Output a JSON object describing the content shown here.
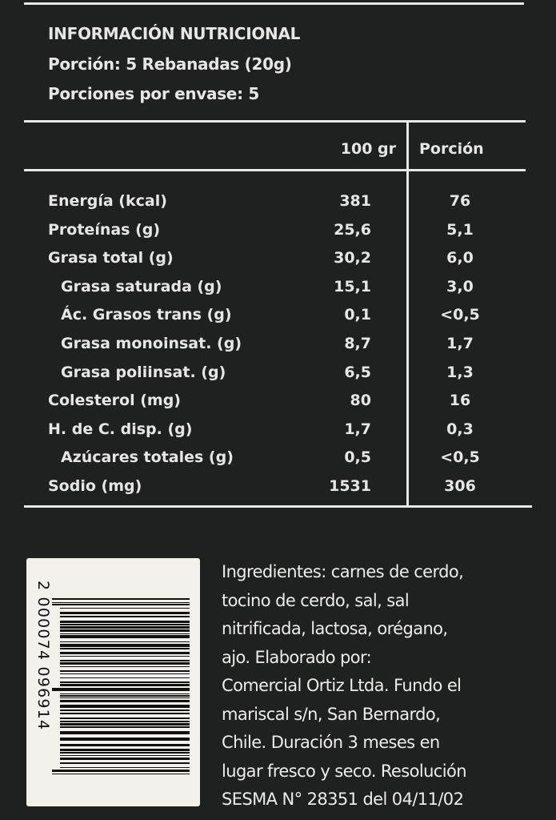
{
  "header": {
    "title": "INFORMACIÓN NUTRICIONAL",
    "serving": "Porción: 5 Rebanadas (20g)",
    "servings_per_pack": "Porciones por envase: 5"
  },
  "table": {
    "columns": [
      "100 gr",
      "Porción"
    ],
    "rows": [
      {
        "label": "Energía (kcal)",
        "per100": "381",
        "portion": "76",
        "indent": false
      },
      {
        "label": "Proteínas (g)",
        "per100": "25,6",
        "portion": "5,1",
        "indent": false
      },
      {
        "label": "Grasa total (g)",
        "per100": "30,2",
        "portion": "6,0",
        "indent": false
      },
      {
        "label": "Grasa saturada (g)",
        "per100": "15,1",
        "portion": "3,0",
        "indent": true
      },
      {
        "label": "Ác. Grasos trans (g)",
        "per100": "0,1",
        "portion": "<0,5",
        "indent": true
      },
      {
        "label": "Grasa monoinsat. (g)",
        "per100": "8,7",
        "portion": "1,7",
        "indent": true
      },
      {
        "label": "Grasa poliinsat. (g)",
        "per100": "6,5",
        "portion": "1,3",
        "indent": true
      },
      {
        "label": "Colesterol (mg)",
        "per100": "80",
        "portion": "16",
        "indent": false
      },
      {
        "label": "H. de C. disp. (g)",
        "per100": "1,7",
        "portion": "0,3",
        "indent": false
      },
      {
        "label": "Azúcares totales (g)",
        "per100": "0,5",
        "portion": "<0,5",
        "indent": true
      },
      {
        "label": "Sodio (mg)",
        "per100": "1531",
        "portion": "306",
        "indent": false
      }
    ]
  },
  "barcode": {
    "digits": "2 000074 096914"
  },
  "ingredients": {
    "lines": [
      "Ingredientes: carnes de cerdo,",
      "tocino de cerdo, sal, sal",
      "nitrificada, lactosa, orégano,",
      "ajo. Elaborado por:",
      "Comercial Ortiz Ltda. Fundo el",
      "mariscal s/n, San Bernardo,",
      "Chile. Duración 3 meses en",
      "lugar fresco y seco. Resolución",
      "SESMA N° 28351 del 04/11/02"
    ]
  }
}
